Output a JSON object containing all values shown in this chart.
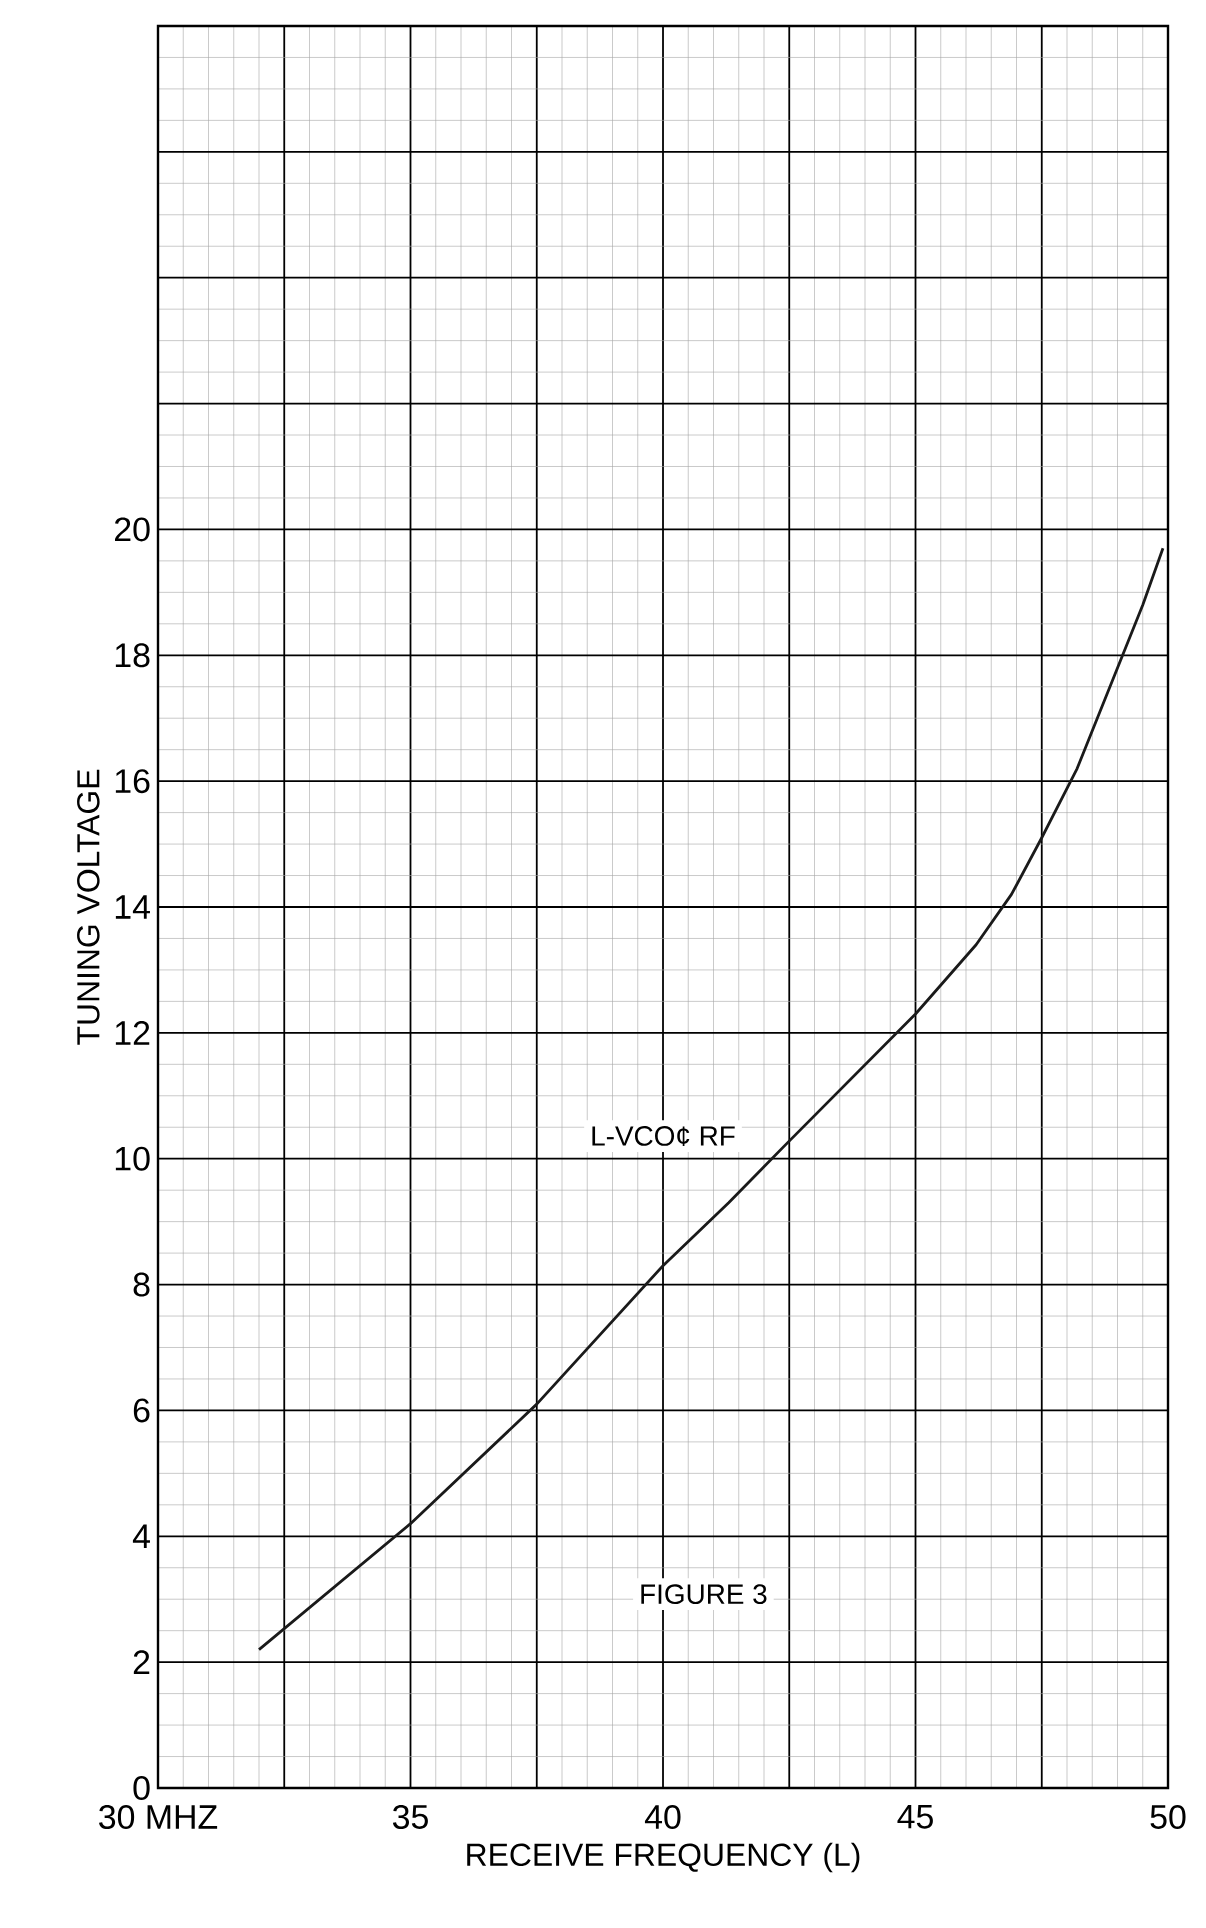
{
  "chart_data": {
    "type": "line",
    "xlabel": "RECEIVE FREQUENCY (L)",
    "ylabel": "TUNING VOLTAGE",
    "annotations": [
      "L-VCO¢ RF",
      "FIGURE 3"
    ],
    "x": [
      32.0,
      35.0,
      37.5,
      40.0,
      41.3,
      42.4,
      45.0,
      46.2,
      46.9,
      47.5,
      48.2,
      48.9,
      49.5,
      49.9
    ],
    "series": [
      {
        "color": "#1a1a1a",
        "values": [
          2.2,
          4.2,
          6.1,
          8.3,
          9.3,
          10.2,
          12.3,
          13.4,
          14.2,
          15.1,
          16.2,
          17.6,
          18.8,
          19.7
        ]
      }
    ],
    "xlim": [
      30,
      50
    ],
    "ylim": [
      0,
      28
    ],
    "xticks": [
      {
        "value": 30,
        "label": "30 MHZ"
      },
      {
        "value": 32.5,
        "label": null
      },
      35,
      {
        "value": 37.5,
        "label": null
      },
      40,
      {
        "value": 42.5,
        "label": null
      },
      45,
      {
        "value": 47.5,
        "label": null
      },
      50
    ],
    "yticks": [
      0,
      2,
      4,
      6,
      8,
      10,
      12,
      14,
      16,
      18,
      20,
      {
        "value": 22,
        "label": null
      },
      {
        "value": 24,
        "label": null
      },
      {
        "value": 26,
        "label": null
      },
      {
        "value": 28,
        "label": null
      }
    ],
    "grid": true,
    "marker": "none"
  }
}
